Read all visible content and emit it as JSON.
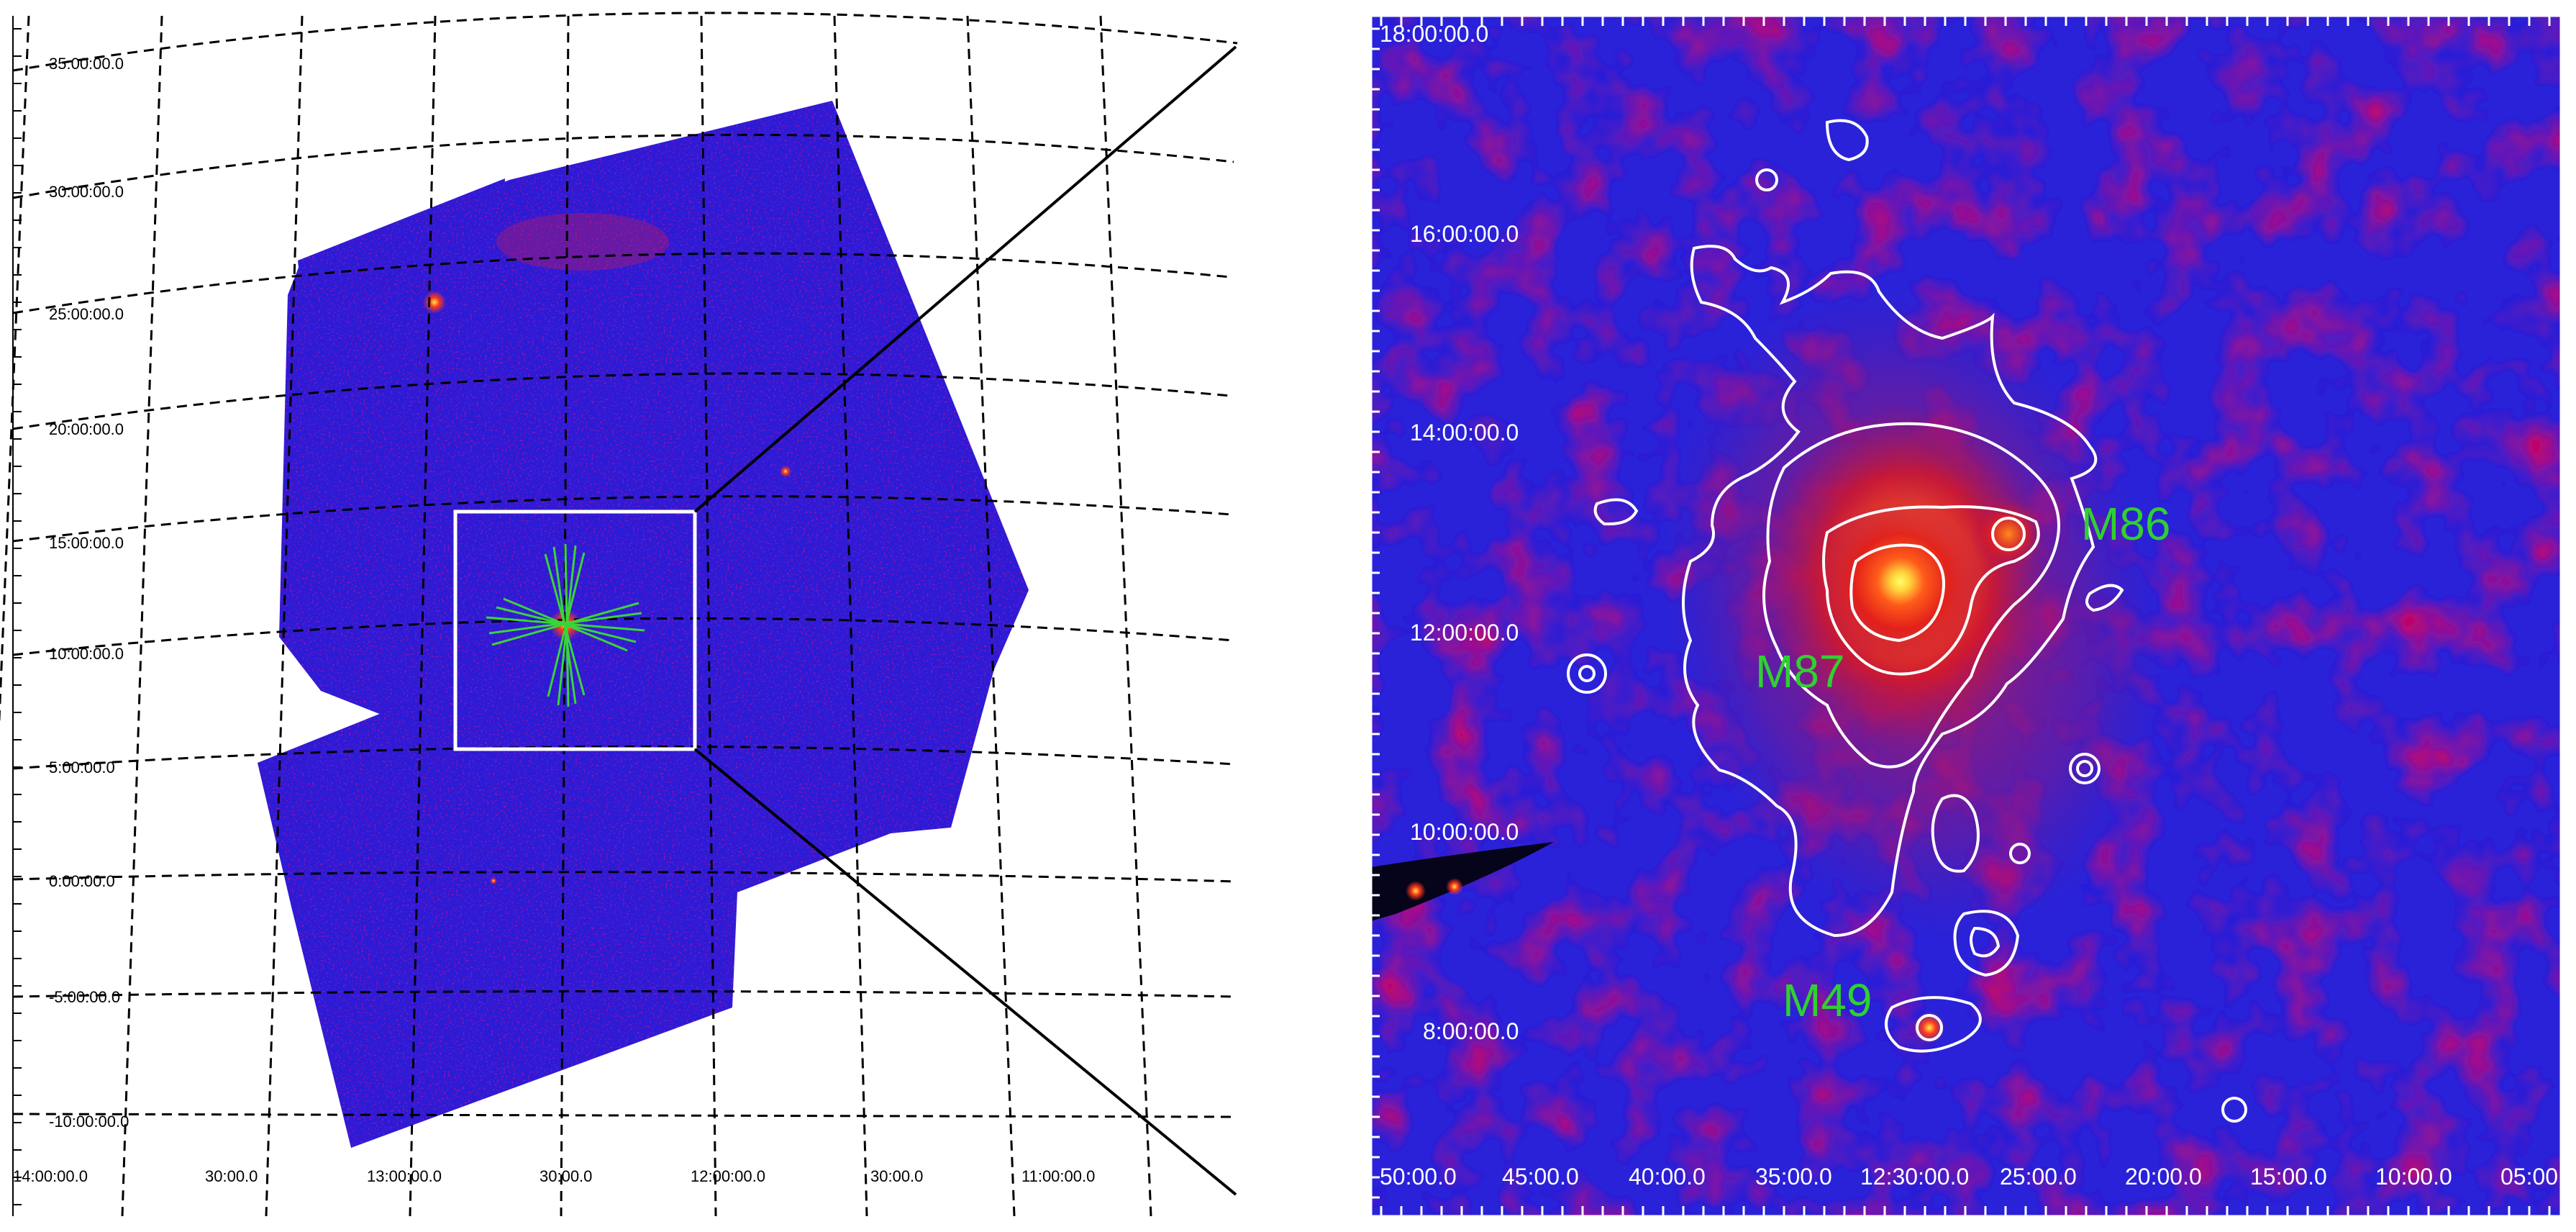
{
  "left_panel": {
    "dec_labels": [
      "35:00:00.0",
      "30:00:00.0",
      "25:00:00.0",
      "20:00:00.0",
      "15:00:00.0",
      "10:00:00.0",
      "5:00:00.0",
      "0:00:00.0",
      "-5:00:00.0",
      "-10:00:00.0"
    ],
    "ra_labels": [
      "14:00:00.0",
      "30:00.0",
      "13:00:00.0",
      "30:00.0",
      "12:00:00.0",
      "30:00.0",
      "11:00:00.0"
    ],
    "colors": {
      "background_map": "#2b1fd6",
      "zoom_box": "#ffffff",
      "source_spikes": "#3ad43a",
      "grid": "#000000"
    }
  },
  "right_panel": {
    "dec_labels": [
      "18:00:00.0",
      "16:00:00.0",
      "14:00:00.0",
      "12:00:00.0",
      "10:00:00.0",
      "8:00:00.0"
    ],
    "ra_labels": [
      "50:00.0",
      "45:00.0",
      "40:00.0",
      "35:00.0",
      "12:30:00.0",
      "25:00.0",
      "20:00.0",
      "15:00.0",
      "10:00.0",
      "05:00"
    ],
    "galaxies": [
      {
        "name": "M86"
      },
      {
        "name": "M87"
      },
      {
        "name": "M49"
      }
    ],
    "colors": {
      "background": "#2a22d8",
      "contours": "#ffffff",
      "labels": "#2fd12f"
    }
  }
}
